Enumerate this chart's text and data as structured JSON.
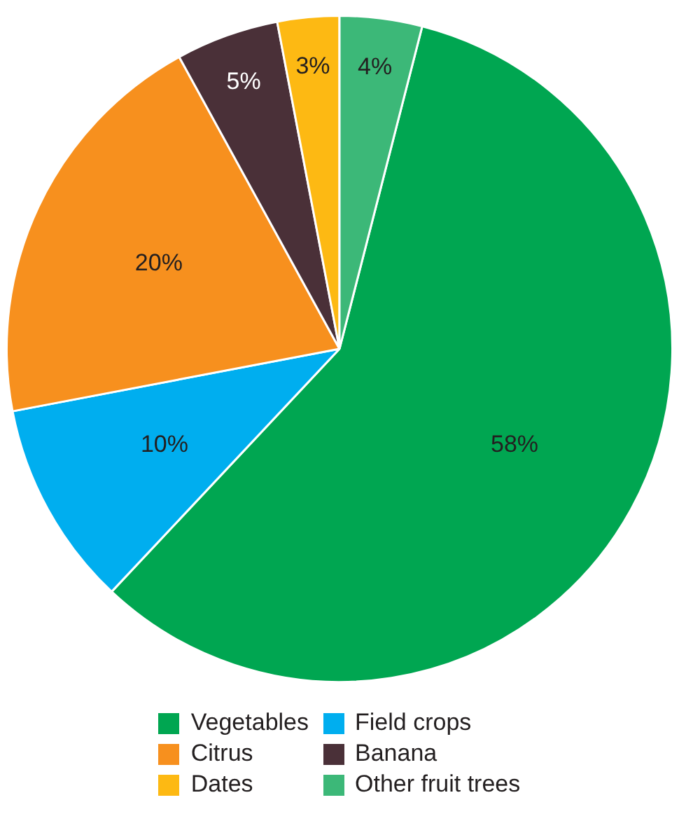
{
  "chart_data": {
    "type": "pie",
    "categories": [
      "Vegetables",
      "Field crops",
      "Citrus",
      "Banana",
      "Dates",
      "Other fruit trees"
    ],
    "values": [
      58,
      10,
      20,
      5,
      3,
      4
    ],
    "colors": [
      "#00a651",
      "#00aeef",
      "#f7901e",
      "#4a3038",
      "#fdb913",
      "#3cb878"
    ],
    "value_labels": [
      "58%",
      "10%",
      "20%",
      "5%",
      "3%",
      "4%"
    ],
    "legend": "bottom"
  }
}
